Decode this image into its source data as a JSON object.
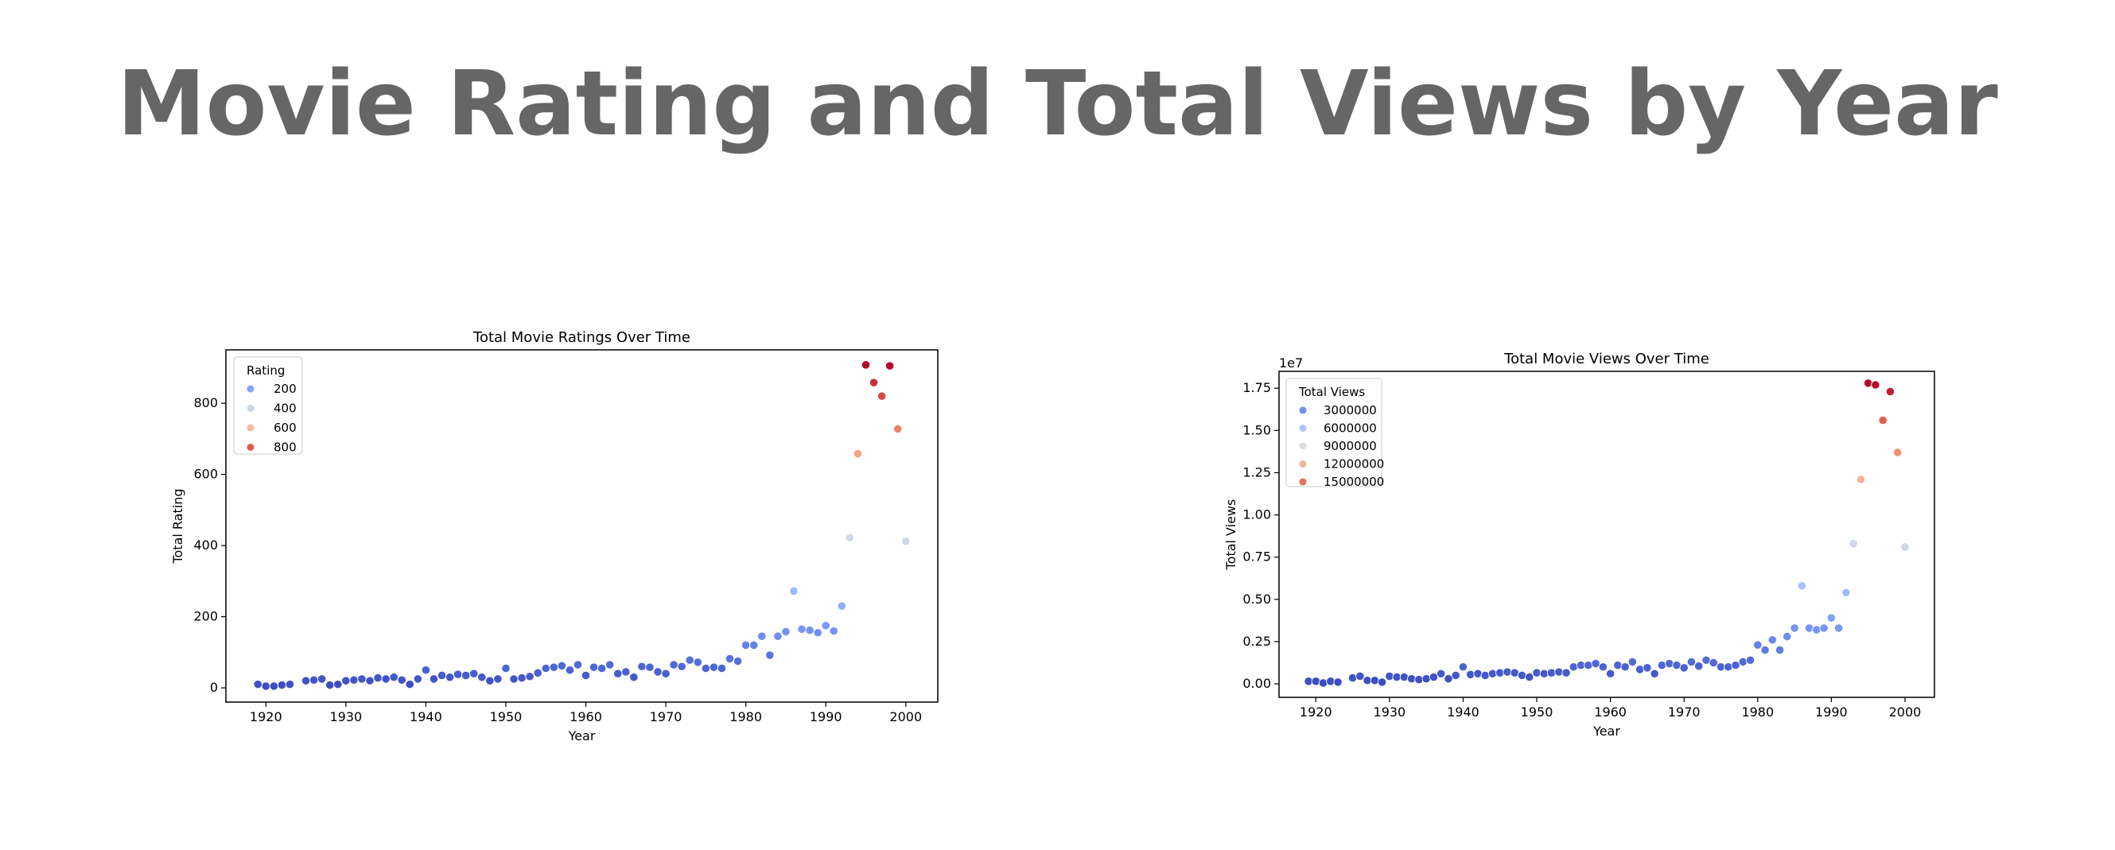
{
  "page_title": "Movie Rating and Total Views by Year",
  "chart_data": [
    {
      "type": "scatter",
      "title": "Total Movie Ratings Over Time",
      "xlabel": "Year",
      "ylabel": "Total Rating",
      "xlim": [
        1915,
        2004
      ],
      "ylim": [
        -40,
        950
      ],
      "x_ticks": [
        "1920",
        "1930",
        "1940",
        "1950",
        "1960",
        "1970",
        "1980",
        "1990",
        "2000"
      ],
      "y_ticks": [
        "0",
        "200",
        "400",
        "600",
        "800"
      ],
      "legend_title": "Rating",
      "legend_position": "upper-left",
      "legend_entries": [
        "200",
        "400",
        "600",
        "800"
      ],
      "hue_range": [
        3,
        910
      ],
      "x": [
        1919,
        1920,
        1921,
        1922,
        1923,
        1925,
        1926,
        1927,
        1928,
        1929,
        1930,
        1931,
        1932,
        1933,
        1934,
        1935,
        1936,
        1937,
        1938,
        1939,
        1940,
        1941,
        1942,
        1943,
        1944,
        1945,
        1946,
        1947,
        1948,
        1949,
        1950,
        1951,
        1952,
        1953,
        1954,
        1955,
        1956,
        1957,
        1958,
        1959,
        1960,
        1961,
        1962,
        1963,
        1964,
        1965,
        1966,
        1967,
        1968,
        1969,
        1970,
        1971,
        1972,
        1973,
        1974,
        1975,
        1976,
        1977,
        1978,
        1979,
        1980,
        1981,
        1982,
        1983,
        1984,
        1985,
        1986,
        1987,
        1988,
        1989,
        1990,
        1991,
        1992,
        1993,
        1994,
        1995,
        1996,
        1997,
        1998,
        1999,
        2000
      ],
      "y": [
        10,
        5,
        5,
        8,
        10,
        20,
        22,
        25,
        8,
        10,
        20,
        22,
        25,
        20,
        28,
        25,
        30,
        22,
        10,
        25,
        50,
        25,
        35,
        30,
        38,
        35,
        40,
        30,
        20,
        25,
        55,
        25,
        28,
        32,
        42,
        55,
        58,
        62,
        50,
        65,
        35,
        58,
        55,
        65,
        40,
        45,
        30,
        60,
        58,
        45,
        40,
        65,
        60,
        78,
        72,
        55,
        58,
        55,
        82,
        75,
        120,
        120,
        145,
        92,
        145,
        158,
        272,
        165,
        162,
        155,
        175,
        160,
        230,
        422,
        658,
        908,
        858,
        820,
        905,
        728,
        412
      ]
    },
    {
      "type": "scatter",
      "title": "Total Movie Views Over Time",
      "xlabel": "Year",
      "ylabel": "Total Views",
      "offset_label": "1e7",
      "xlim": [
        1915,
        2004
      ],
      "ylim": [
        -0.08,
        1.85
      ],
      "x_ticks": [
        "1920",
        "1930",
        "1940",
        "1950",
        "1960",
        "1970",
        "1980",
        "1990",
        "2000"
      ],
      "y_ticks": [
        "0.00",
        "0.25",
        "0.50",
        "0.75",
        "1.00",
        "1.25",
        "1.50",
        "1.75"
      ],
      "legend_title": "Total Views",
      "legend_position": "upper-left",
      "legend_entries": [
        "3000000",
        "6000000",
        "9000000",
        "12000000",
        "15000000"
      ],
      "hue_range": [
        0.006,
        1.79
      ],
      "x": [
        1919,
        1920,
        1921,
        1922,
        1923,
        1925,
        1926,
        1927,
        1928,
        1929,
        1930,
        1931,
        1932,
        1933,
        1934,
        1935,
        1936,
        1937,
        1938,
        1939,
        1940,
        1941,
        1942,
        1943,
        1944,
        1945,
        1946,
        1947,
        1948,
        1949,
        1950,
        1951,
        1952,
        1953,
        1954,
        1955,
        1956,
        1957,
        1958,
        1959,
        1960,
        1961,
        1962,
        1963,
        1964,
        1965,
        1966,
        1967,
        1968,
        1969,
        1970,
        1971,
        1972,
        1973,
        1974,
        1975,
        1976,
        1977,
        1978,
        1979,
        1980,
        1981,
        1982,
        1983,
        1984,
        1985,
        1986,
        1987,
        1988,
        1989,
        1990,
        1991,
        1992,
        1993,
        1994,
        1995,
        1996,
        1997,
        1998,
        1999,
        2000
      ],
      "y": [
        0.015,
        0.015,
        0.005,
        0.015,
        0.01,
        0.035,
        0.045,
        0.02,
        0.02,
        0.01,
        0.045,
        0.04,
        0.04,
        0.03,
        0.025,
        0.03,
        0.04,
        0.06,
        0.03,
        0.05,
        0.1,
        0.055,
        0.06,
        0.05,
        0.06,
        0.065,
        0.07,
        0.065,
        0.05,
        0.04,
        0.065,
        0.06,
        0.065,
        0.07,
        0.065,
        0.1,
        0.11,
        0.11,
        0.12,
        0.1,
        0.06,
        0.11,
        0.1,
        0.13,
        0.085,
        0.095,
        0.06,
        0.11,
        0.12,
        0.11,
        0.095,
        0.13,
        0.105,
        0.14,
        0.125,
        0.1,
        0.1,
        0.11,
        0.13,
        0.14,
        0.23,
        0.2,
        0.26,
        0.2,
        0.28,
        0.33,
        0.58,
        0.33,
        0.32,
        0.33,
        0.39,
        0.33,
        0.54,
        0.83,
        1.21,
        1.78,
        1.77,
        1.56,
        1.73,
        1.37,
        0.81
      ]
    }
  ]
}
